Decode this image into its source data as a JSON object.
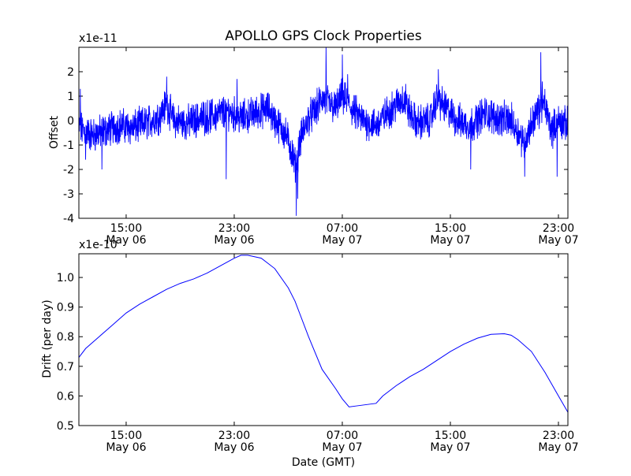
{
  "chart_data": {
    "title": "APOLLO GPS Clock Properties",
    "xlabel": "Date (GMT)",
    "x_unit": "hours since May 06 00:00 GMT",
    "x_range": [
      11.5,
      47.7
    ],
    "x_ticks": [
      {
        "value": 15,
        "line1": "15:00",
        "line2": "May 06"
      },
      {
        "value": 23,
        "line1": "23:00",
        "line2": "May 06"
      },
      {
        "value": 31,
        "line1": "07:00",
        "line2": "May 07"
      },
      {
        "value": 39,
        "line1": "15:00",
        "line2": "May 07"
      },
      {
        "value": 47,
        "line1": "23:00",
        "line2": "May 07"
      }
    ],
    "panels": [
      {
        "type": "line",
        "ylabel": "Offset",
        "scale_label": "x1e-11",
        "ylim": [
          -4,
          3
        ],
        "y_ticks": [
          2,
          1,
          0,
          -1,
          -2,
          -3,
          -4
        ],
        "color": "#0000ff",
        "noise_points": 2400,
        "baseline": [
          [
            11.5,
            -0.3
          ],
          [
            12.5,
            -0.6
          ],
          [
            13.5,
            -0.4
          ],
          [
            14.5,
            -0.2
          ],
          [
            15.5,
            -0.3
          ],
          [
            16.5,
            -0.1
          ],
          [
            17.5,
            0.2
          ],
          [
            18.0,
            0.7
          ],
          [
            18.5,
            0.0
          ],
          [
            19.5,
            -0.1
          ],
          [
            20.5,
            0.1
          ],
          [
            21.5,
            0.2
          ],
          [
            22.5,
            0.4
          ],
          [
            23.5,
            0.1
          ],
          [
            24.5,
            0.3
          ],
          [
            25.5,
            0.5
          ],
          [
            26.0,
            0.0
          ],
          [
            26.5,
            -0.3
          ],
          [
            27.0,
            -0.8
          ],
          [
            27.5,
            -1.8
          ],
          [
            28.0,
            -0.6
          ],
          [
            28.5,
            0.1
          ],
          [
            29.0,
            0.4
          ],
          [
            29.5,
            0.9
          ],
          [
            30.5,
            0.5
          ],
          [
            31.0,
            1.0
          ],
          [
            31.5,
            0.6
          ],
          [
            32.5,
            0.0
          ],
          [
            33.5,
            -0.2
          ],
          [
            34.5,
            0.4
          ],
          [
            35.5,
            0.9
          ],
          [
            36.0,
            0.3
          ],
          [
            36.5,
            -0.1
          ],
          [
            37.5,
            0.0
          ],
          [
            38.0,
            0.9
          ],
          [
            38.5,
            0.6
          ],
          [
            39.5,
            0.0
          ],
          [
            40.5,
            -0.2
          ],
          [
            41.5,
            0.3
          ],
          [
            42.5,
            0.1
          ],
          [
            43.5,
            0.0
          ],
          [
            44.5,
            -0.9
          ],
          [
            45.0,
            -0.1
          ],
          [
            45.5,
            0.4
          ],
          [
            46.0,
            0.6
          ],
          [
            46.5,
            -0.4
          ],
          [
            47.0,
            0.0
          ],
          [
            47.7,
            -0.2
          ]
        ],
        "spikes": [
          [
            11.6,
            1.3
          ],
          [
            12.0,
            -1.6
          ],
          [
            13.2,
            -2.0
          ],
          [
            18.0,
            1.8
          ],
          [
            22.4,
            -2.4
          ],
          [
            23.2,
            1.7
          ],
          [
            27.6,
            -3.9
          ],
          [
            27.7,
            -3.2
          ],
          [
            29.8,
            3.0
          ],
          [
            31.0,
            2.7
          ],
          [
            31.4,
            1.9
          ],
          [
            35.7,
            1.5
          ],
          [
            38.1,
            2.1
          ],
          [
            40.5,
            -2.0
          ],
          [
            44.5,
            -2.3
          ],
          [
            45.7,
            2.8
          ],
          [
            45.8,
            1.6
          ],
          [
            46.9,
            -2.3
          ]
        ]
      },
      {
        "type": "line",
        "ylabel": "Drift (per day)",
        "scale_label": "x1e-10",
        "ylim": [
          0.5,
          1.08
        ],
        "y_ticks": [
          1.0,
          0.9,
          0.8,
          0.7,
          0.6,
          0.5
        ],
        "y_tick_labels": [
          "1.0",
          "0.9",
          "0.8",
          "0.7",
          "0.6",
          "0.5"
        ],
        "color": "#0000ff",
        "points": [
          [
            11.5,
            0.73
          ],
          [
            12.0,
            0.76
          ],
          [
            13.0,
            0.8
          ],
          [
            14.0,
            0.84
          ],
          [
            15.0,
            0.88
          ],
          [
            16.0,
            0.91
          ],
          [
            17.0,
            0.935
          ],
          [
            18.0,
            0.96
          ],
          [
            19.0,
            0.98
          ],
          [
            20.0,
            0.995
          ],
          [
            21.0,
            1.015
          ],
          [
            22.0,
            1.04
          ],
          [
            23.0,
            1.065
          ],
          [
            23.5,
            1.075
          ],
          [
            24.0,
            1.075
          ],
          [
            25.0,
            1.065
          ],
          [
            26.0,
            1.03
          ],
          [
            27.0,
            0.965
          ],
          [
            27.5,
            0.92
          ],
          [
            28.5,
            0.8
          ],
          [
            29.5,
            0.69
          ],
          [
            30.5,
            0.625
          ],
          [
            31.0,
            0.59
          ],
          [
            31.5,
            0.563
          ],
          [
            32.0,
            0.566
          ],
          [
            33.0,
            0.572
          ],
          [
            33.5,
            0.575
          ],
          [
            34.0,
            0.6
          ],
          [
            35.0,
            0.635
          ],
          [
            36.0,
            0.665
          ],
          [
            37.0,
            0.69
          ],
          [
            38.0,
            0.72
          ],
          [
            39.0,
            0.75
          ],
          [
            40.0,
            0.775
          ],
          [
            41.0,
            0.795
          ],
          [
            42.0,
            0.808
          ],
          [
            43.0,
            0.81
          ],
          [
            43.5,
            0.805
          ],
          [
            44.0,
            0.79
          ],
          [
            45.0,
            0.75
          ],
          [
            46.0,
            0.68
          ],
          [
            47.0,
            0.6
          ],
          [
            47.7,
            0.545
          ]
        ]
      }
    ]
  }
}
